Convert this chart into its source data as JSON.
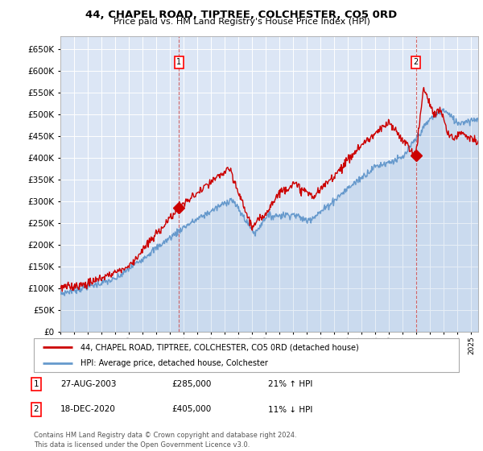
{
  "title": "44, CHAPEL ROAD, TIPTREE, COLCHESTER, CO5 0RD",
  "subtitle": "Price paid vs. HM Land Registry's House Price Index (HPI)",
  "ylim": [
    0,
    680000
  ],
  "yticks": [
    0,
    50000,
    100000,
    150000,
    200000,
    250000,
    300000,
    350000,
    400000,
    450000,
    500000,
    550000,
    600000,
    650000
  ],
  "sale1_year": 2003.65,
  "sale1_price": 285000,
  "sale2_year": 2020.95,
  "sale2_price": 405000,
  "legend_label_red": "44, CHAPEL ROAD, TIPTREE, COLCHESTER, CO5 0RD (detached house)",
  "legend_label_blue": "HPI: Average price, detached house, Colchester",
  "table_row1": [
    "1",
    "27-AUG-2003",
    "£285,000",
    "21% ↑ HPI"
  ],
  "table_row2": [
    "2",
    "18-DEC-2020",
    "£405,000",
    "11% ↓ HPI"
  ],
  "footnote": "Contains HM Land Registry data © Crown copyright and database right 2024.\nThis data is licensed under the Open Government Licence v3.0.",
  "red_color": "#cc0000",
  "blue_color": "#6699cc",
  "chart_bg": "#dce6f5",
  "grid_color": "#ffffff"
}
